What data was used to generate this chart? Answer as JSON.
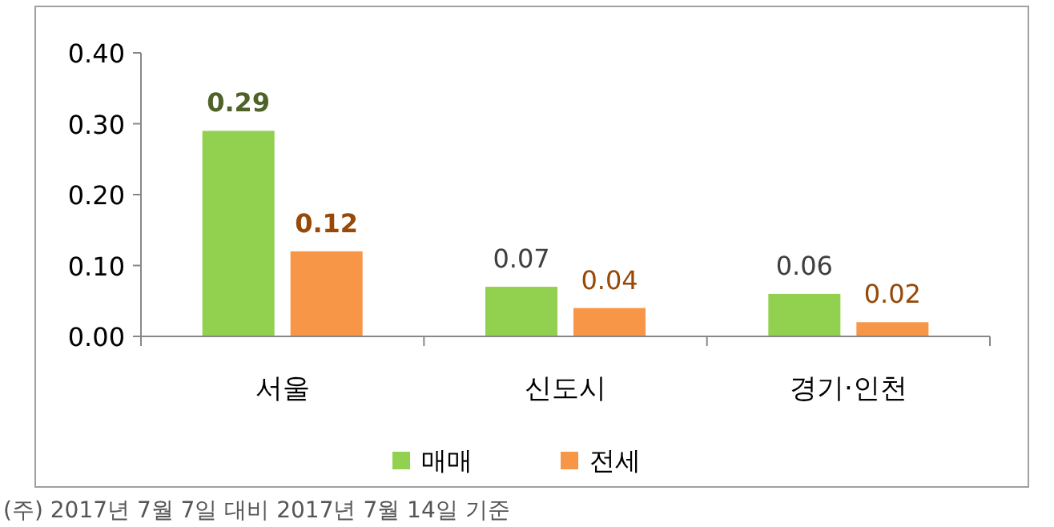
{
  "chart_data": {
    "type": "bar",
    "categories": [
      "서울",
      "신도시",
      "경기·인천"
    ],
    "series": [
      {
        "name": "매매",
        "color": "#92d050",
        "values": [
          0.29,
          0.07,
          0.06
        ]
      },
      {
        "name": "전세",
        "color": "#f79646",
        "values": [
          0.12,
          0.04,
          0.02
        ]
      }
    ],
    "ylim": [
      0,
      0.4
    ],
    "yticks": [
      {
        "value": 0,
        "label": "0.00"
      },
      {
        "value": 0.1,
        "label": "0.10"
      },
      {
        "value": 0.2,
        "label": "0.20"
      },
      {
        "value": 0.3,
        "label": "0.30"
      },
      {
        "value": 0.4,
        "label": "0.40"
      }
    ],
    "data_labels": true,
    "legend": "bottom",
    "annotations": [
      "(주) 2017년 7월 7일 대비 2017년 7월 14일 기준"
    ]
  }
}
